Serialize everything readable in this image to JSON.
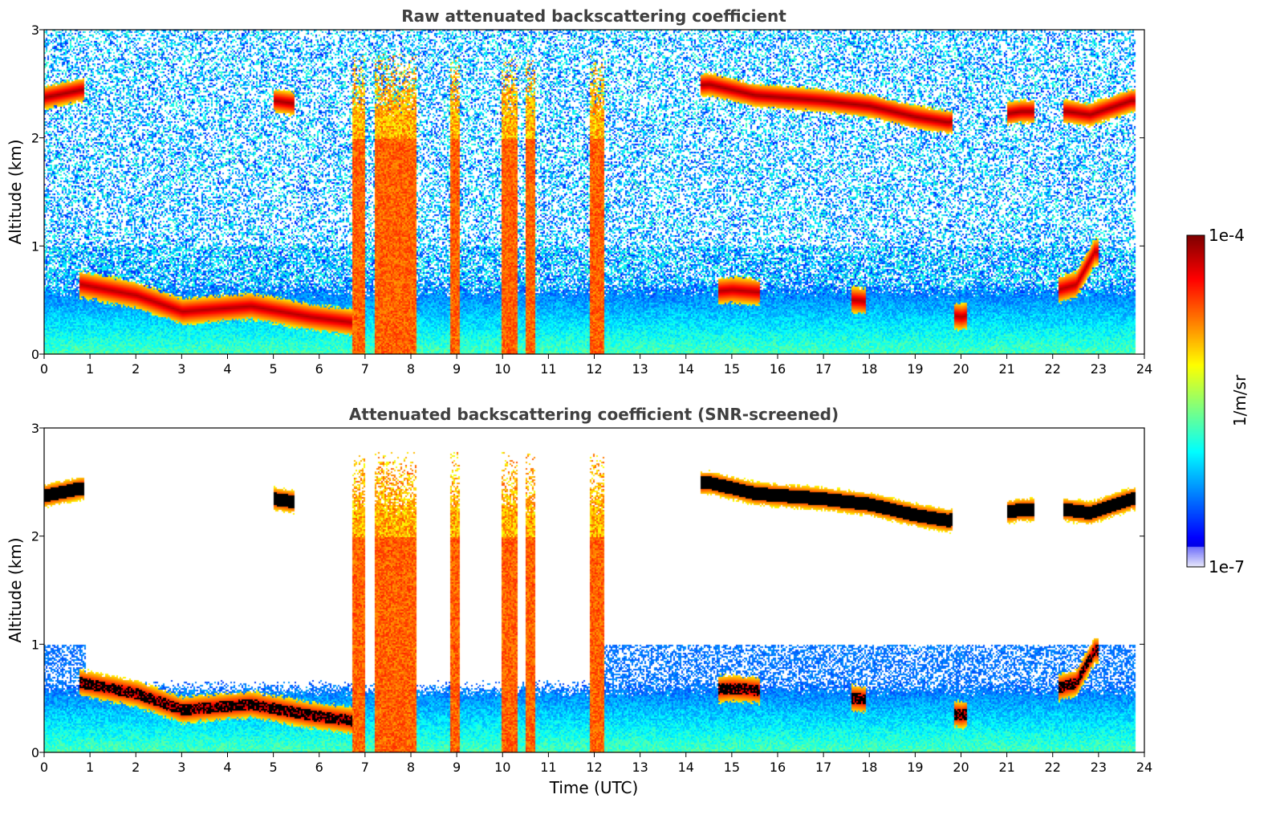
{
  "chart_data": [
    {
      "type": "heatmap",
      "title": "Raw attenuated backscattering coefficient",
      "xlabel": "",
      "ylabel": "Altitude (km)",
      "xlim": [
        0,
        24
      ],
      "ylim": [
        0,
        3
      ],
      "xticks": [
        "0",
        "1",
        "2",
        "3",
        "4",
        "5",
        "6",
        "7",
        "8",
        "9",
        "10",
        "11",
        "12",
        "13",
        "14",
        "15",
        "16",
        "17",
        "18",
        "19",
        "20",
        "21",
        "22",
        "23",
        "24"
      ],
      "yticks": [
        "0",
        "1",
        "2",
        "3"
      ],
      "screened": false,
      "data_end_hour": 23.8,
      "features": {
        "boundary_layer_top_km": 0.6,
        "elevated_cloud_layer": [
          {
            "time": 0.0,
            "alt_km": 2.38
          },
          {
            "time": 0.8,
            "alt_km": 2.45
          },
          {
            "time": 5.0,
            "alt_km": 2.35
          },
          {
            "time": 5.5,
            "alt_km": 2.32
          },
          {
            "time": 14.5,
            "alt_km": 2.5
          },
          {
            "time": 15.5,
            "alt_km": 2.4
          },
          {
            "time": 17.0,
            "alt_km": 2.35
          },
          {
            "time": 18.0,
            "alt_km": 2.3
          },
          {
            "time": 19.0,
            "alt_km": 2.2
          },
          {
            "time": 19.7,
            "alt_km": 2.15
          },
          {
            "time": 21.3,
            "alt_km": 2.25
          },
          {
            "time": 22.3,
            "alt_km": 2.25
          },
          {
            "time": 22.8,
            "alt_km": 2.22
          },
          {
            "time": 23.7,
            "alt_km": 2.35
          }
        ],
        "low_cloud_layer": [
          {
            "time": 0.8,
            "alt_km": 0.65
          },
          {
            "time": 2.0,
            "alt_km": 0.55
          },
          {
            "time": 3.0,
            "alt_km": 0.4
          },
          {
            "time": 4.5,
            "alt_km": 0.45
          },
          {
            "time": 5.8,
            "alt_km": 0.35
          },
          {
            "time": 6.7,
            "alt_km": 0.3
          },
          {
            "time": 15.0,
            "alt_km": 0.6
          },
          {
            "time": 17.8,
            "alt_km": 0.5
          },
          {
            "time": 20.0,
            "alt_km": 0.35
          },
          {
            "time": 22.5,
            "alt_km": 0.65
          },
          {
            "time": 22.9,
            "alt_km": 0.95
          }
        ],
        "precipitation_columns_hours": [
          [
            6.7,
            7.0
          ],
          [
            7.2,
            7.8
          ],
          [
            7.8,
            8.1
          ],
          [
            8.85,
            9.05
          ],
          [
            9.95,
            10.3
          ],
          [
            10.5,
            10.7
          ],
          [
            11.9,
            12.2
          ]
        ]
      }
    },
    {
      "type": "heatmap",
      "title": "Attenuated backscattering coefficient (SNR-screened)",
      "xlabel": "Time (UTC)",
      "ylabel": "Altitude (km)",
      "xlim": [
        0,
        24
      ],
      "ylim": [
        0,
        3
      ],
      "xticks": [
        "0",
        "1",
        "2",
        "3",
        "4",
        "5",
        "6",
        "7",
        "8",
        "9",
        "10",
        "11",
        "12",
        "13",
        "14",
        "15",
        "16",
        "17",
        "18",
        "19",
        "20",
        "21",
        "22",
        "23",
        "24"
      ],
      "yticks": [
        "0",
        "1",
        "2",
        "3"
      ],
      "screened": true,
      "data_end_hour": 23.8
    }
  ],
  "colorbar": {
    "label": "1/m/sr",
    "max_label": "1e-4",
    "min_label": "1e-7",
    "min": 1e-07,
    "max": 0.0001,
    "scale": "log",
    "colormap": "jet"
  }
}
